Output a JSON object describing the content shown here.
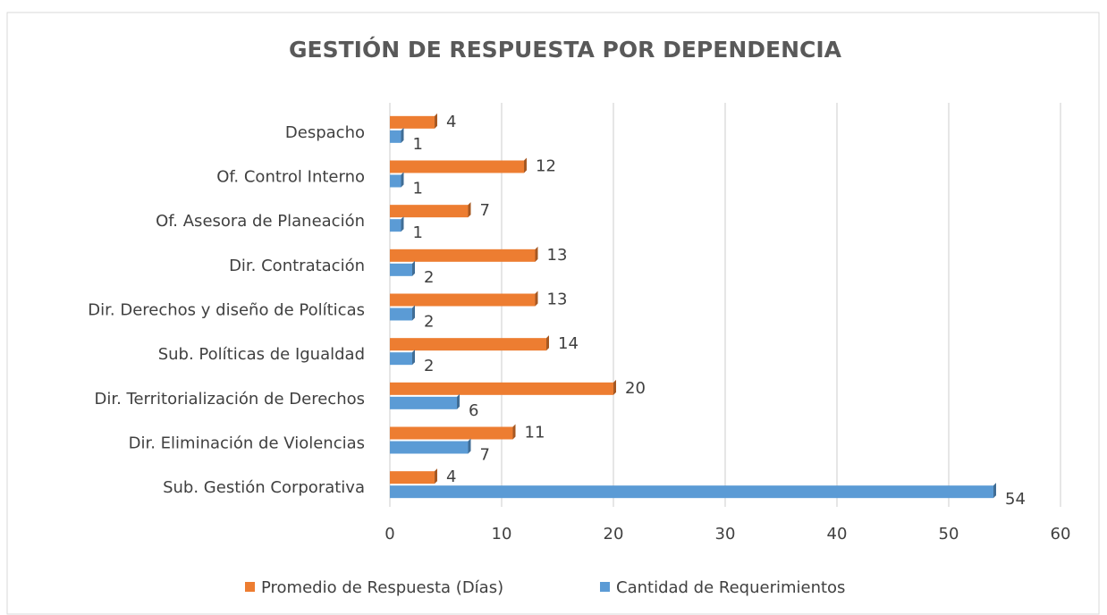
{
  "chart_data": {
    "type": "bar",
    "orientation": "horizontal",
    "title": "GESTIÓN DE RESPUESTA POR DEPENDENCIA",
    "categories": [
      "Despacho",
      "Of. Control Interno",
      "Of. Asesora de Planeación",
      "Dir. Contratación",
      "Dir. Derechos y diseño de Políticas",
      "Sub. Políticas de Igualdad",
      "Dir. Territorialización de Derechos",
      "Dir. Eliminación de Violencias",
      "Sub. Gestión Corporativa"
    ],
    "series": [
      {
        "name": "Promedio de Respuesta (Días)",
        "color": "#ed7d31",
        "values": [
          4,
          12,
          7,
          13,
          13,
          14,
          20,
          11,
          4
        ]
      },
      {
        "name": "Cantidad de Requerimientos",
        "color": "#5b9bd5",
        "values": [
          1,
          1,
          1,
          2,
          2,
          2,
          6,
          7,
          54
        ]
      }
    ],
    "xlim": [
      0,
      60
    ],
    "xticks": [
      0,
      10,
      20,
      30,
      40,
      50,
      60
    ],
    "grid": true,
    "legend": "bottom"
  }
}
